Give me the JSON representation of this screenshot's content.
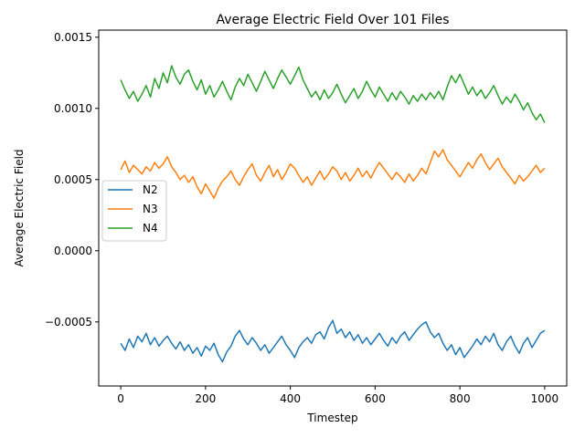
{
  "chart_data": {
    "type": "line",
    "title": "Average Electric Field Over 101 Files",
    "xlabel": "Timestep",
    "ylabel": "Average Electric Field",
    "xlim": [
      -52,
      1052
    ],
    "ylim": [
      -0.00095,
      0.00155
    ],
    "xticks": [
      0,
      200,
      400,
      600,
      800,
      1000
    ],
    "xtick_labels": [
      "0",
      "200",
      "400",
      "600",
      "800",
      "1000"
    ],
    "yticks": [
      -0.0005,
      0.0,
      0.0005,
      0.001,
      0.0015
    ],
    "ytick_labels": [
      "−0.0005",
      "0.0000",
      "0.0005",
      "0.0010",
      "0.0015"
    ],
    "grid": false,
    "legend_position": "center-left",
    "series": [
      {
        "name": "N2",
        "color": "#1f77b4",
        "x": [
          0,
          10,
          20,
          30,
          40,
          50,
          60,
          70,
          80,
          90,
          100,
          110,
          120,
          130,
          140,
          150,
          160,
          170,
          180,
          190,
          200,
          210,
          220,
          230,
          240,
          250,
          260,
          270,
          280,
          290,
          300,
          310,
          320,
          330,
          340,
          350,
          360,
          370,
          380,
          390,
          400,
          410,
          420,
          430,
          440,
          450,
          460,
          470,
          480,
          490,
          500,
          510,
          520,
          530,
          540,
          550,
          560,
          570,
          580,
          590,
          600,
          610,
          620,
          630,
          640,
          650,
          660,
          670,
          680,
          690,
          700,
          710,
          720,
          730,
          740,
          750,
          760,
          770,
          780,
          790,
          800,
          810,
          820,
          830,
          840,
          850,
          860,
          870,
          880,
          890,
          900,
          910,
          920,
          930,
          940,
          950,
          960,
          970,
          980,
          990,
          1000
        ],
        "y": [
          -0.00065,
          -0.0007,
          -0.00062,
          -0.00068,
          -0.0006,
          -0.00064,
          -0.00058,
          -0.00066,
          -0.00061,
          -0.00067,
          -0.00063,
          -0.0006,
          -0.00065,
          -0.00069,
          -0.00064,
          -0.0007,
          -0.00066,
          -0.00072,
          -0.00068,
          -0.00074,
          -0.00067,
          -0.0007,
          -0.00065,
          -0.00073,
          -0.00078,
          -0.00071,
          -0.00067,
          -0.0006,
          -0.00056,
          -0.00062,
          -0.00066,
          -0.00061,
          -0.00065,
          -0.0007,
          -0.00066,
          -0.00072,
          -0.00068,
          -0.00064,
          -0.0006,
          -0.00066,
          -0.0007,
          -0.00075,
          -0.00068,
          -0.00064,
          -0.00061,
          -0.00065,
          -0.00059,
          -0.00057,
          -0.00062,
          -0.00054,
          -0.00049,
          -0.00058,
          -0.00055,
          -0.00061,
          -0.00057,
          -0.00063,
          -0.00059,
          -0.00065,
          -0.00061,
          -0.00066,
          -0.00062,
          -0.00058,
          -0.00063,
          -0.00067,
          -0.00061,
          -0.00065,
          -0.0006,
          -0.00057,
          -0.00063,
          -0.00059,
          -0.00055,
          -0.00052,
          -0.0005,
          -0.00057,
          -0.00061,
          -0.00058,
          -0.00065,
          -0.0007,
          -0.00066,
          -0.00073,
          -0.00068,
          -0.00075,
          -0.00071,
          -0.00067,
          -0.00062,
          -0.00066,
          -0.0006,
          -0.00064,
          -0.00058,
          -0.00066,
          -0.0007,
          -0.00064,
          -0.0006,
          -0.00067,
          -0.00072,
          -0.00065,
          -0.00061,
          -0.00068,
          -0.00063,
          -0.00058,
          -0.00056
        ]
      },
      {
        "name": "N3",
        "color": "#ff7f0e",
        "x": [
          0,
          10,
          20,
          30,
          40,
          50,
          60,
          70,
          80,
          90,
          100,
          110,
          120,
          130,
          140,
          150,
          160,
          170,
          180,
          190,
          200,
          210,
          220,
          230,
          240,
          250,
          260,
          270,
          280,
          290,
          300,
          310,
          320,
          330,
          340,
          350,
          360,
          370,
          380,
          390,
          400,
          410,
          420,
          430,
          440,
          450,
          460,
          470,
          480,
          490,
          500,
          510,
          520,
          530,
          540,
          550,
          560,
          570,
          580,
          590,
          600,
          610,
          620,
          630,
          640,
          650,
          660,
          670,
          680,
          690,
          700,
          710,
          720,
          730,
          740,
          750,
          760,
          770,
          780,
          790,
          800,
          810,
          820,
          830,
          840,
          850,
          860,
          870,
          880,
          890,
          900,
          910,
          920,
          930,
          940,
          950,
          960,
          970,
          980,
          990,
          1000
        ],
        "y": [
          0.00057,
          0.00063,
          0.00055,
          0.0006,
          0.00057,
          0.00054,
          0.00059,
          0.00056,
          0.00062,
          0.00058,
          0.00061,
          0.00066,
          0.00059,
          0.00055,
          0.0005,
          0.00053,
          0.00048,
          0.00052,
          0.00045,
          0.0004,
          0.00047,
          0.00042,
          0.00037,
          0.00044,
          0.00049,
          0.00052,
          0.00056,
          0.0005,
          0.00046,
          0.00052,
          0.00057,
          0.00061,
          0.00053,
          0.00049,
          0.00055,
          0.0006,
          0.00052,
          0.00057,
          0.0005,
          0.00055,
          0.00061,
          0.00058,
          0.00053,
          0.00048,
          0.00052,
          0.00046,
          0.00051,
          0.00056,
          0.0005,
          0.00054,
          0.00059,
          0.00056,
          0.0005,
          0.00055,
          0.00049,
          0.00053,
          0.00058,
          0.00052,
          0.00056,
          0.00051,
          0.00057,
          0.00062,
          0.00058,
          0.00054,
          0.0005,
          0.00055,
          0.00052,
          0.00048,
          0.00054,
          0.00049,
          0.00053,
          0.00058,
          0.00054,
          0.00062,
          0.0007,
          0.00066,
          0.00071,
          0.00064,
          0.0006,
          0.00056,
          0.00052,
          0.00057,
          0.00062,
          0.00058,
          0.00064,
          0.00068,
          0.00062,
          0.00057,
          0.00061,
          0.00065,
          0.00059,
          0.00055,
          0.00051,
          0.00047,
          0.00053,
          0.00049,
          0.00052,
          0.00056,
          0.0006,
          0.00055,
          0.00058
        ]
      },
      {
        "name": "N4",
        "color": "#2ca02c",
        "x": [
          0,
          10,
          20,
          30,
          40,
          50,
          60,
          70,
          80,
          90,
          100,
          110,
          120,
          130,
          140,
          150,
          160,
          170,
          180,
          190,
          200,
          210,
          220,
          230,
          240,
          250,
          260,
          270,
          280,
          290,
          300,
          310,
          320,
          330,
          340,
          350,
          360,
          370,
          380,
          390,
          400,
          410,
          420,
          430,
          440,
          450,
          460,
          470,
          480,
          490,
          500,
          510,
          520,
          530,
          540,
          550,
          560,
          570,
          580,
          590,
          600,
          610,
          620,
          630,
          640,
          650,
          660,
          670,
          680,
          690,
          700,
          710,
          720,
          730,
          740,
          750,
          760,
          770,
          780,
          790,
          800,
          810,
          820,
          830,
          840,
          850,
          860,
          870,
          880,
          890,
          900,
          910,
          920,
          930,
          940,
          950,
          960,
          970,
          980,
          990,
          1000
        ],
        "y": [
          0.0012,
          0.00113,
          0.00107,
          0.00112,
          0.00105,
          0.0011,
          0.00116,
          0.00108,
          0.00121,
          0.00114,
          0.00125,
          0.00118,
          0.0013,
          0.00122,
          0.00117,
          0.00124,
          0.00127,
          0.00119,
          0.00113,
          0.0012,
          0.0011,
          0.00116,
          0.00108,
          0.00113,
          0.00119,
          0.00112,
          0.00106,
          0.00115,
          0.00121,
          0.00116,
          0.00124,
          0.00118,
          0.00112,
          0.00119,
          0.00126,
          0.0012,
          0.00114,
          0.00121,
          0.00127,
          0.00122,
          0.00117,
          0.00123,
          0.00129,
          0.0012,
          0.00114,
          0.00108,
          0.00112,
          0.00106,
          0.00113,
          0.00107,
          0.00111,
          0.00117,
          0.0011,
          0.00104,
          0.00109,
          0.00114,
          0.00107,
          0.00112,
          0.00119,
          0.00113,
          0.00108,
          0.00115,
          0.0011,
          0.00105,
          0.00111,
          0.00106,
          0.00112,
          0.00108,
          0.00103,
          0.00109,
          0.00105,
          0.0011,
          0.00106,
          0.00111,
          0.00107,
          0.00112,
          0.00106,
          0.00115,
          0.00123,
          0.00118,
          0.00124,
          0.00117,
          0.0011,
          0.00115,
          0.00109,
          0.00113,
          0.00107,
          0.00111,
          0.00116,
          0.00109,
          0.00103,
          0.00108,
          0.00104,
          0.0011,
          0.00105,
          0.00099,
          0.00104,
          0.00097,
          0.00092,
          0.00096,
          0.0009
        ]
      }
    ]
  }
}
